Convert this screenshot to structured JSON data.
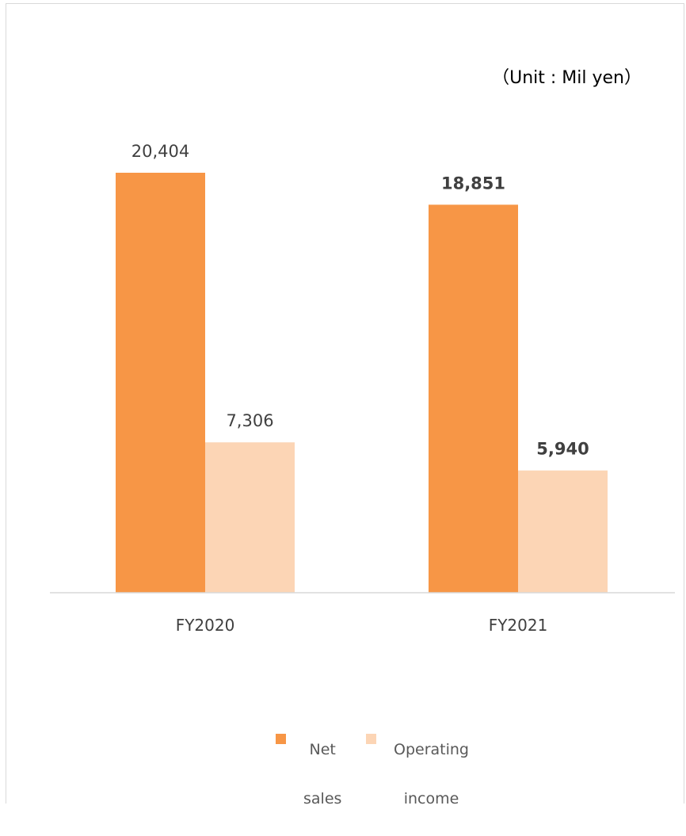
{
  "chart_data": {
    "type": "bar",
    "unit_label": "（Unit : Mil yen）",
    "categories": [
      "FY2020",
      "FY2021"
    ],
    "series": [
      {
        "name": "Net sales",
        "values": [
          20404,
          18851
        ],
        "labels": [
          "20,404",
          "18,851"
        ],
        "color": "#f79646"
      },
      {
        "name": "Operating income",
        "values": [
          7306,
          5940
        ],
        "labels": [
          "7,306",
          "5,940"
        ],
        "color": "#fcd5b5"
      }
    ],
    "bold_categories": [
      "FY2021"
    ],
    "ylim": [
      0,
      20404
    ],
    "grid": false,
    "legend_position": "bottom",
    "legend": [
      {
        "line1": "Net",
        "line2": "sales"
      },
      {
        "line1": "Operating",
        "line2": "income"
      }
    ]
  }
}
